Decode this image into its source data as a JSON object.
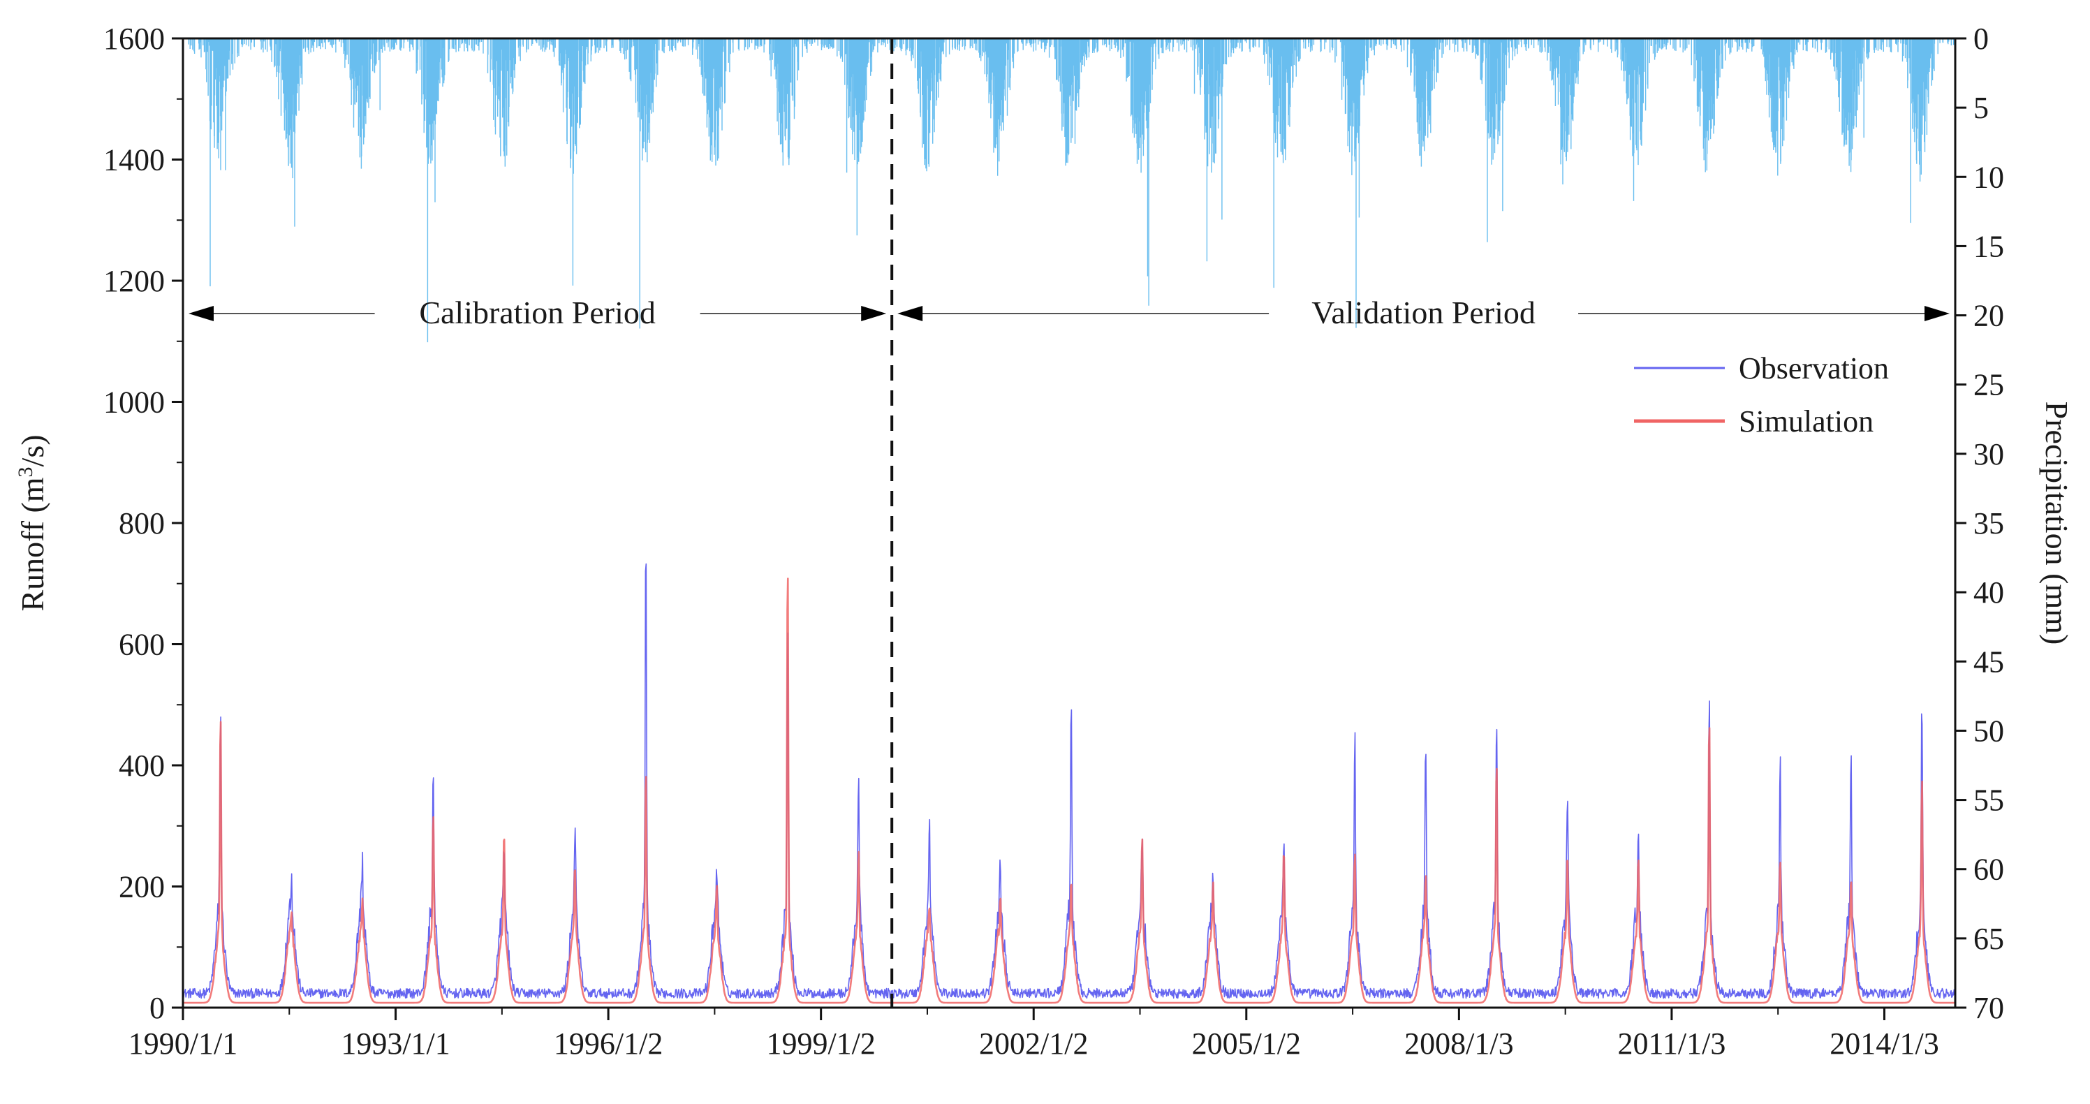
{
  "chart_data": {
    "type": "line",
    "title": "",
    "x_ticks": [
      "1990/1/1",
      "1993/1/1",
      "1996/1/2",
      "1999/1/2",
      "2002/1/2",
      "2005/1/2",
      "2008/1/3",
      "2011/1/3",
      "2014/1/3"
    ],
    "x_range": [
      1990.0,
      2015.0
    ],
    "ylabel_main": "Runoff (m",
    "ylabel_sup": "3",
    "ylabel_tail": "/s)",
    "y_left_range": [
      0,
      1600
    ],
    "y_left_ticks": [
      "0",
      "200",
      "400",
      "600",
      "800",
      "1000",
      "1200",
      "1400",
      "1600"
    ],
    "ylabel_right": "Precipitation (mm)",
    "y_right_range": [
      0,
      70
    ],
    "y_right_reversed": true,
    "y_right_ticks": [
      "0",
      "5",
      "10",
      "15",
      "20",
      "25",
      "30",
      "35",
      "40",
      "45",
      "50",
      "55",
      "60",
      "65",
      "70"
    ],
    "periods": [
      {
        "label": "Calibration Period",
        "x_start": 1990.0,
        "x_end": 2000.0
      },
      {
        "label": "Validation Period",
        "x_start": 2000.0,
        "x_end": 2015.0
      }
    ],
    "split_x": 2000.0,
    "annual_peaks": {
      "years": [
        1990,
        1991,
        1992,
        1993,
        1994,
        1995,
        1996,
        1997,
        1998,
        1999,
        2000,
        2001,
        2002,
        2003,
        2004,
        2005,
        2006,
        2007,
        2008,
        2009,
        2010,
        2011,
        2012,
        2013,
        2014
      ],
      "observation": [
        480,
        205,
        230,
        375,
        230,
        300,
        790,
        210,
        640,
        375,
        285,
        215,
        500,
        280,
        210,
        280,
        455,
        430,
        490,
        355,
        280,
        495,
        410,
        400,
        500
      ],
      "simulation": [
        500,
        160,
        180,
        330,
        300,
        240,
        410,
        210,
        750,
        265,
        170,
        180,
        215,
        285,
        210,
        265,
        260,
        230,
        420,
        265,
        250,
        495,
        250,
        215,
        390
      ]
    },
    "series": [
      {
        "name": "Observation",
        "color": "#6464f0"
      },
      {
        "name": "Simulation",
        "color": "#f06464"
      },
      {
        "name": "Precipitation",
        "color": "#4fb3ec"
      }
    ],
    "legend": {
      "position": "top-right",
      "items": [
        "Observation",
        "Simulation"
      ]
    }
  }
}
